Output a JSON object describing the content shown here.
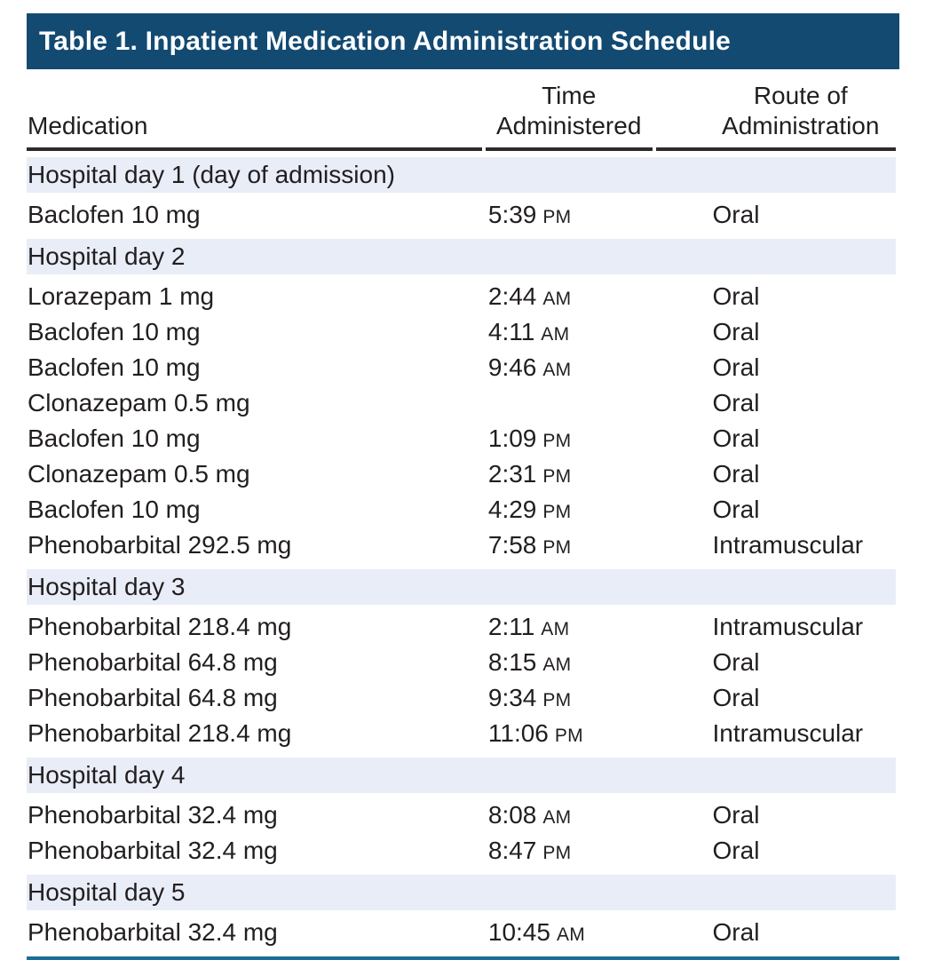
{
  "table": {
    "title": "Table 1. Inpatient Medication Administration Schedule",
    "headers": {
      "medication": "Medication",
      "time_line1": "Time",
      "time_line2": "Administered",
      "route_line1": "Route of",
      "route_line2": "Administration"
    },
    "sections": [
      {
        "label": "Hospital day 1 (day of admission)",
        "rows": [
          {
            "medication": "Baclofen 10 mg",
            "time": "5:39",
            "meridiem": "PM",
            "route": "Oral"
          }
        ]
      },
      {
        "label": "Hospital day 2",
        "rows": [
          {
            "medication": "Lorazepam 1 mg",
            "time": "2:44",
            "meridiem": "AM",
            "route": "Oral"
          },
          {
            "medication": "Baclofen 10 mg",
            "time": "4:11",
            "meridiem": "AM",
            "route": "Oral"
          },
          {
            "medication": "Baclofen 10 mg",
            "time": "9:46",
            "meridiem": "AM",
            "route": "Oral"
          },
          {
            "medication": "Clonazepam 0.5 mg",
            "time": "",
            "meridiem": "",
            "route": "Oral"
          },
          {
            "medication": "Baclofen 10 mg",
            "time": "1:09",
            "meridiem": "PM",
            "route": "Oral"
          },
          {
            "medication": "Clonazepam 0.5 mg",
            "time": "2:31",
            "meridiem": "PM",
            "route": "Oral"
          },
          {
            "medication": "Baclofen 10 mg",
            "time": "4:29",
            "meridiem": "PM",
            "route": "Oral"
          },
          {
            "medication": "Phenobarbital 292.5 mg",
            "time": "7:58",
            "meridiem": "PM",
            "route": "Intramuscular"
          }
        ]
      },
      {
        "label": "Hospital day 3",
        "rows": [
          {
            "medication": "Phenobarbital 218.4 mg",
            "time": "2:11",
            "meridiem": "AM",
            "route": "Intramuscular"
          },
          {
            "medication": "Phenobarbital 64.8 mg",
            "time": "8:15",
            "meridiem": "AM",
            "route": "Oral"
          },
          {
            "medication": "Phenobarbital 64.8 mg",
            "time": "9:34",
            "meridiem": "PM",
            "route": "Oral"
          },
          {
            "medication": "Phenobarbital 218.4 mg",
            "time": "11:06",
            "meridiem": "PM",
            "route": "Intramuscular"
          }
        ]
      },
      {
        "label": "Hospital day 4",
        "rows": [
          {
            "medication": "Phenobarbital 32.4 mg",
            "time": "8:08",
            "meridiem": "AM",
            "route": "Oral"
          },
          {
            "medication": "Phenobarbital 32.4 mg",
            "time": "8:47",
            "meridiem": "PM",
            "route": "Oral"
          }
        ]
      },
      {
        "label": "Hospital day 5",
        "rows": [
          {
            "medication": "Phenobarbital 32.4 mg",
            "time": "10:45",
            "meridiem": "AM",
            "route": "Oral"
          }
        ]
      }
    ],
    "colors": {
      "title_bar_bg": "#134a72",
      "title_text": "#ffffff",
      "section_band_bg": "#e8edf7",
      "header_rule": "#2d2a2b",
      "bottom_rule": "#1c6e99",
      "body_text": "#221e1f"
    }
  }
}
